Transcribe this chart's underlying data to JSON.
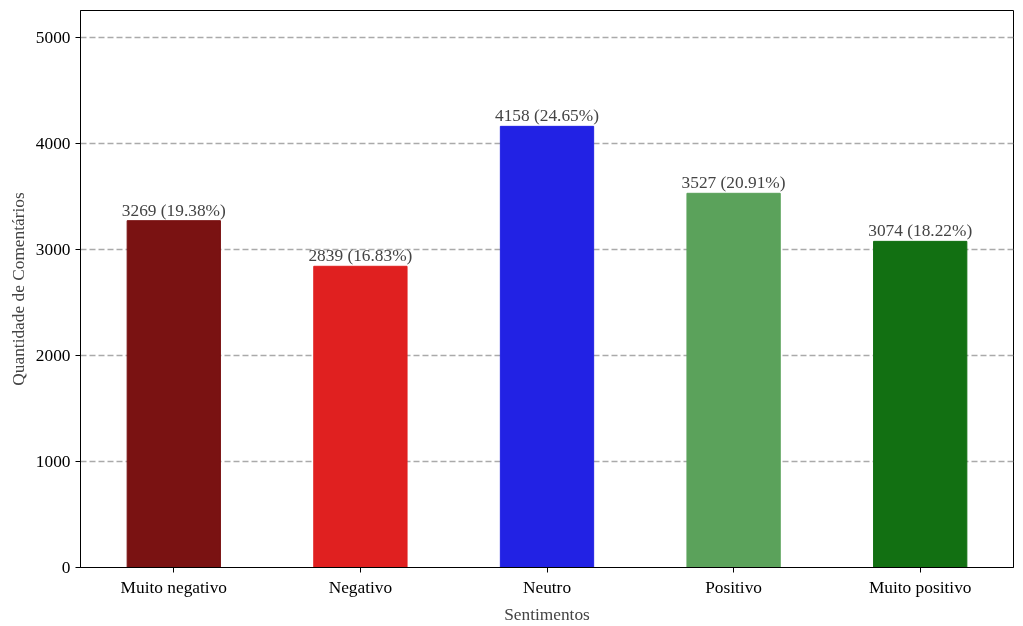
{
  "chart_data": {
    "type": "bar",
    "xlabel": "Sentimentos",
    "ylabel": "Quantidade de Comentários",
    "categories": [
      "Muito negativo",
      "Negativo",
      "Neutro",
      "Positivo",
      "Muito positivo"
    ],
    "values": [
      3269,
      2839,
      4158,
      3527,
      3074
    ],
    "colors": [
      "#7a1212",
      "#e02020",
      "#2222e4",
      "#5ba25b",
      "#127012"
    ],
    "value_labels": [
      "3269 (19.38%)",
      "2839 (16.83%)",
      "4158 (24.65%)",
      "3527 (20.91%)",
      "3074 (18.22%)"
    ],
    "ylim": [
      0,
      5250
    ],
    "yticks": [
      0,
      1000,
      2000,
      3000,
      4000,
      5000
    ],
    "grid": "y"
  }
}
